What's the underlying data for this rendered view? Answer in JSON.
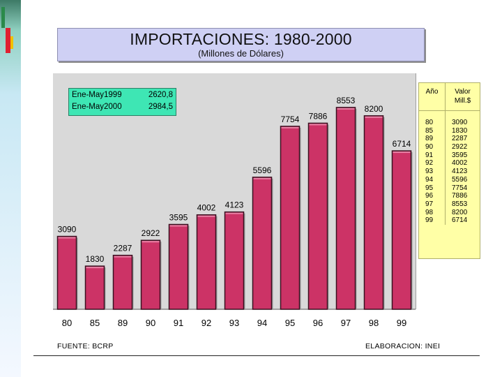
{
  "title": "IMPORTACIONES: 1980-2000",
  "subtitle": "(Millones de Dólares)",
  "info_box": [
    {
      "label": "Ene-May1999",
      "value": "2620,8"
    },
    {
      "label": "Ene-May2000",
      "value": "2984,5"
    }
  ],
  "table": {
    "header_col1": "Año",
    "header_col2_line1": "Valor",
    "header_col2_line2": "Mill.$",
    "years": [
      "80",
      "85",
      "89",
      "90",
      "91",
      "92",
      "93",
      "94",
      "95",
      "96",
      "97",
      "98",
      "99"
    ],
    "values": [
      "3090",
      "1830",
      "2287",
      "2922",
      "3595",
      "4002",
      "4123",
      "5596",
      "7754",
      "7886",
      "8553",
      "8200",
      "6714"
    ]
  },
  "footer": {
    "source": "FUENTE: BCRP",
    "elaboration": "ELABORACION: INEI"
  },
  "colors": {
    "bar": "#cc3366",
    "bar_outline": "#3a1020",
    "plot_bg": "#d9d9d9",
    "info_bg": "#3ee6b4",
    "table_bg": "#ffffa6",
    "title_bg": "#cfd0f4"
  },
  "chart_data": {
    "type": "bar",
    "categories": [
      "80",
      "85",
      "89",
      "90",
      "91",
      "92",
      "93",
      "94",
      "95",
      "96",
      "97",
      "98",
      "99"
    ],
    "values": [
      3090,
      1830,
      2287,
      2922,
      3595,
      4002,
      4123,
      5596,
      7754,
      7886,
      8553,
      8200,
      6714
    ],
    "value_labels": [
      "3090",
      "1830",
      "2287",
      "2922",
      "3595",
      "4002",
      "4123",
      "5596",
      "7754",
      "7886",
      "8553",
      "8200",
      "6714"
    ],
    "title": "IMPORTACIONES: 1980-2000",
    "subtitle": "(Millones de Dólares)",
    "xlabel": "",
    "ylabel": "",
    "ylim": [
      0,
      10000
    ],
    "grid": false,
    "legend": "none"
  }
}
